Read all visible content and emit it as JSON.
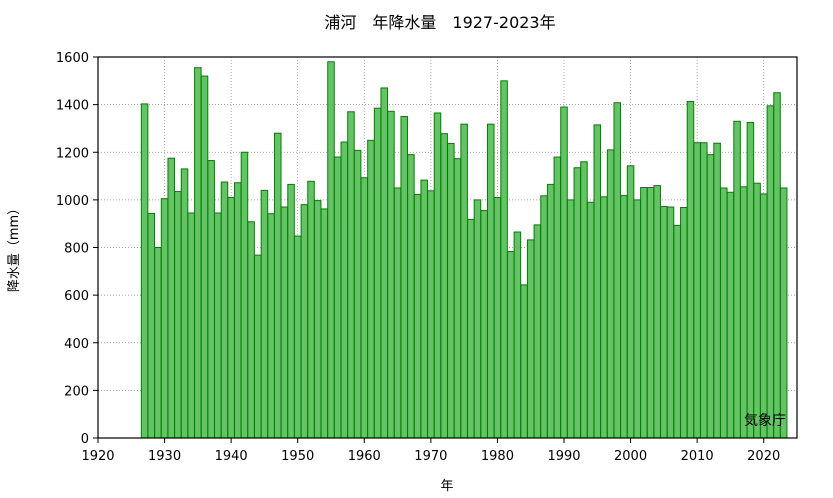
{
  "chart_data": {
    "type": "bar",
    "title": "浦河　年降水量　1927-2023年",
    "xlabel": "年",
    "ylabel": "降水量（mm）",
    "credit": "気象庁",
    "xlim": [
      1920,
      2025
    ],
    "ylim": [
      0,
      1600
    ],
    "xticks": [
      1920,
      1930,
      1940,
      1950,
      1960,
      1970,
      1980,
      1990,
      2000,
      2010,
      2020
    ],
    "yticks": [
      0,
      200,
      400,
      600,
      800,
      1000,
      1200,
      1400,
      1600
    ],
    "grid": true,
    "colors": {
      "bar_fill": "#66c266",
      "bar_edge": "#008000"
    },
    "start_year": 1927,
    "values": [
      1403,
      943,
      800,
      1005,
      1175,
      1035,
      1130,
      945,
      1555,
      1520,
      1165,
      945,
      1075,
      1010,
      1072,
      1200,
      908,
      768,
      1040,
      942,
      1280,
      970,
      1065,
      848,
      980,
      1078,
      997,
      962,
      1580,
      1180,
      1243,
      1370,
      1208,
      1093,
      1250,
      1385,
      1470,
      1372,
      1050,
      1350,
      1190,
      1023,
      1083,
      1038,
      1365,
      1278,
      1237,
      1173,
      1318,
      918,
      1000,
      955,
      1318,
      1010,
      1500,
      783,
      865,
      643,
      832,
      895,
      1017,
      1065,
      1180,
      1390,
      1000,
      1135,
      1160,
      990,
      1315,
      1013,
      1210,
      1408,
      1018,
      1143,
      1000,
      1052,
      1052,
      1060,
      972,
      970,
      893,
      968,
      1413,
      1240,
      1240,
      1190,
      1238,
      1050,
      1032,
      1330,
      1055,
      1325,
      1070,
      1025,
      1395,
      1450,
      1050
    ]
  }
}
